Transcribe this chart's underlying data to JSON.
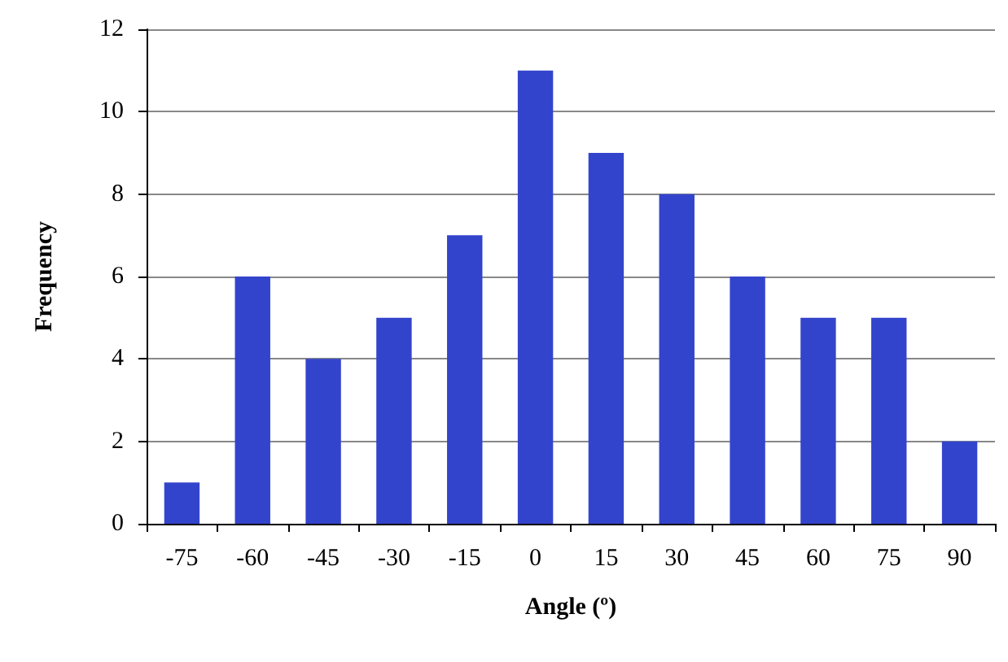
{
  "chart_data": {
    "type": "bar",
    "xlabel": "Angle (º)",
    "ylabel": "Frequency",
    "categories": [
      "-75",
      "-60",
      "-45",
      "-30",
      "-15",
      "0",
      "15",
      "30",
      "45",
      "60",
      "75",
      "90"
    ],
    "values": [
      1,
      6,
      4,
      5,
      7,
      11,
      9,
      8,
      6,
      5,
      5,
      2
    ],
    "color": "#3344cc",
    "ylim": [
      0,
      12
    ],
    "yticks": [
      0,
      2,
      4,
      6,
      8,
      10,
      12
    ],
    "grid": "y"
  }
}
